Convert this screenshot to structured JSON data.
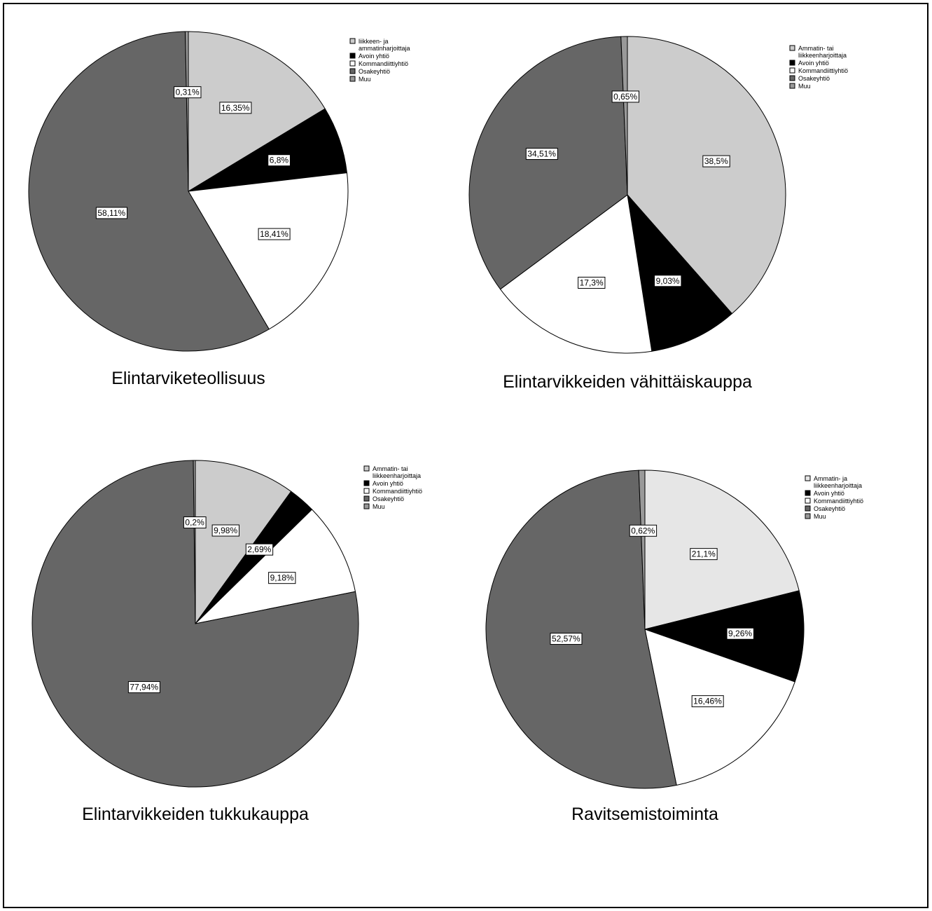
{
  "chart_data": [
    {
      "type": "pie",
      "title": "Elintarviketeollisuus",
      "legend_placement": "right",
      "legend": [
        "liikkeen- ja ammatinharjoittaja",
        "Avoin yhtiö",
        "Kommandiittiyhtiö",
        "Osakeyhtiö",
        "Muu"
      ],
      "categories": [
        "liikkeen- ja ammatinharjoittaja",
        "Avoin yhtiö",
        "Kommandiittiyhtiö",
        "Osakeyhtiö",
        "Muu"
      ],
      "values": [
        16.35,
        6.8,
        18.41,
        58.11,
        0.31
      ],
      "labels": [
        "16,35%",
        "6,8%",
        "18,41%",
        "58,11%",
        "0,31%"
      ],
      "colors": [
        "#cccccc",
        "#000000",
        "#ffffff",
        "#666666",
        "#999999"
      ]
    },
    {
      "type": "pie",
      "title": "Elintarvikkeiden vähittäiskauppa",
      "legend_placement": "right",
      "legend": [
        "Ammatin- tai liikkeenharjoittaja",
        "Avoin yhtiö",
        "Kommandiittiyhtiö",
        "Osakeyhtiö",
        "Muu"
      ],
      "categories": [
        "Ammatin- tai liikkeenharjoittaja",
        "Avoin yhtiö",
        "Kommandiittiyhtiö",
        "Osakeyhtiö",
        "Muu"
      ],
      "values": [
        38.5,
        9.03,
        17.3,
        34.51,
        0.65
      ],
      "labels": [
        "38,5%",
        "9,03%",
        "17,3%",
        "34,51%",
        "0,65%"
      ],
      "colors": [
        "#cccccc",
        "#000000",
        "#ffffff",
        "#666666",
        "#999999"
      ]
    },
    {
      "type": "pie",
      "title": "Elintarvikkeiden tukkukauppa",
      "legend_placement": "right",
      "legend": [
        "Ammatin- tai liikkeenharjoittaja",
        "Avoin yhtiö",
        "Kommandiittiyhtiö",
        "Osakeyhtiö",
        "Muu"
      ],
      "categories": [
        "Ammatin- tai liikkeenharjoittaja",
        "Avoin yhtiö",
        "Kommandiittiyhtiö",
        "Osakeyhtiö",
        "Muu"
      ],
      "values": [
        9.98,
        2.69,
        9.18,
        77.94,
        0.2
      ],
      "labels": [
        "9,98%",
        "2,69%",
        "9,18%",
        "77,94%",
        "0,2%"
      ],
      "colors": [
        "#cccccc",
        "#000000",
        "#ffffff",
        "#666666",
        "#999999"
      ]
    },
    {
      "type": "pie",
      "title": "Ravitsemistoiminta",
      "legend_placement": "right",
      "legend": [
        "Ammatin- ja liikkeenharjoittaja",
        "Avoin yhtiö",
        "Kommandiittiyhtiö",
        "Osakeyhtiö",
        "Muu"
      ],
      "categories": [
        "Ammatin- ja liikkeenharjoittaja",
        "Avoin yhtiö",
        "Kommandiittiyhtiö",
        "Osakeyhtiö",
        "Muu"
      ],
      "values": [
        21.1,
        9.26,
        16.46,
        52.57,
        0.62
      ],
      "labels": [
        "21,1%",
        "9,26%",
        "16,46%",
        "52,57%",
        "0,62%"
      ],
      "colors": [
        "#e6e6e6",
        "#000000",
        "#ffffff",
        "#666666",
        "#999999"
      ]
    }
  ]
}
